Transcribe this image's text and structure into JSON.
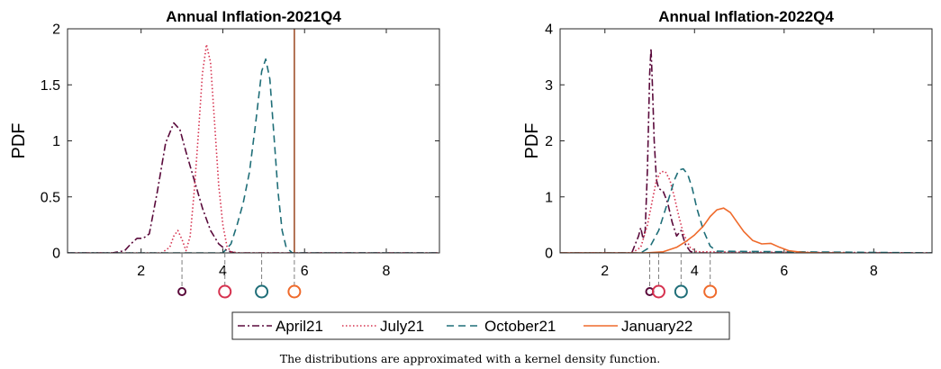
{
  "chart_data": [
    {
      "type": "line",
      "title": "Annual Inflation-2021Q4",
      "xlabel": "",
      "ylabel": "PDF",
      "xlim": [
        0.2,
        9.3
      ],
      "ylim": [
        0,
        2
      ],
      "xticks": [
        2,
        4,
        6,
        8
      ],
      "xtick_labels": [
        "2",
        "4",
        "6",
        "8"
      ],
      "yticks": [
        0,
        0.5,
        1,
        1.5,
        2
      ],
      "ytick_labels": [
        "0",
        "0.5",
        "1",
        "1.5",
        "2"
      ],
      "vertical_line": {
        "x": 5.75,
        "series": "January22"
      },
      "series": [
        {
          "name": "April21",
          "style": "dashdot",
          "x": [
            0.2,
            1.3,
            1.6,
            1.75,
            1.9,
            2.05,
            2.2,
            2.4,
            2.6,
            2.8,
            2.95,
            3.1,
            3.3,
            3.5,
            3.7,
            3.9,
            4.1,
            4.3,
            4.5,
            4.8,
            9.3
          ],
          "y": [
            0,
            0,
            0.02,
            0.08,
            0.13,
            0.13,
            0.17,
            0.55,
            0.98,
            1.16,
            1.1,
            0.9,
            0.65,
            0.4,
            0.2,
            0.08,
            0.02,
            0,
            0,
            0,
            0
          ]
        },
        {
          "name": "July21",
          "style": "dotted",
          "x": [
            0.2,
            2.5,
            2.7,
            2.8,
            2.9,
            3.0,
            3.1,
            3.2,
            3.3,
            3.4,
            3.5,
            3.6,
            3.7,
            3.8,
            3.9,
            4.0,
            4.1,
            4.2,
            4.4,
            9.3
          ],
          "y": [
            0,
            0,
            0.05,
            0.15,
            0.2,
            0.12,
            0.02,
            0.15,
            0.55,
            1.05,
            1.6,
            1.86,
            1.7,
            1.15,
            0.6,
            0.25,
            0.06,
            0.01,
            0,
            0
          ]
        },
        {
          "name": "October21",
          "style": "dashed",
          "x": [
            0.2,
            4.0,
            4.2,
            4.35,
            4.5,
            4.65,
            4.8,
            4.95,
            5.05,
            5.15,
            5.25,
            5.35,
            5.45,
            5.55,
            5.7,
            9.3
          ],
          "y": [
            0,
            0,
            0.08,
            0.25,
            0.45,
            0.72,
            1.15,
            1.62,
            1.73,
            1.55,
            1.05,
            0.55,
            0.2,
            0.05,
            0,
            0
          ]
        },
        {
          "name": "January22",
          "style": "solid",
          "x": [],
          "y": []
        }
      ],
      "markers": [
        {
          "series": "April21",
          "x": 3.0
        },
        {
          "series": "July21",
          "x": 4.05
        },
        {
          "series": "October21",
          "x": 4.95
        },
        {
          "series": "January22",
          "x": 5.75
        }
      ]
    },
    {
      "type": "line",
      "title": "Annual Inflation-2022Q4",
      "xlabel": "",
      "ylabel": "PDF",
      "xlim": [
        1,
        9.3
      ],
      "ylim": [
        0,
        4
      ],
      "xticks": [
        2,
        4,
        6,
        8
      ],
      "xtick_labels": [
        "2",
        "4",
        "6",
        "8"
      ],
      "yticks": [
        0,
        1,
        2,
        3,
        4
      ],
      "ytick_labels": [
        "0",
        "1",
        "2",
        "3",
        "4"
      ],
      "series": [
        {
          "name": "April21",
          "style": "dashdot",
          "x": [
            1,
            2.6,
            2.75,
            2.8,
            2.85,
            2.9,
            2.95,
            3.0,
            3.03,
            3.06,
            3.1,
            3.15,
            3.2,
            3.3,
            3.4,
            3.5,
            3.6,
            3.7,
            3.8,
            3.9,
            4.0,
            9.3
          ],
          "y": [
            0,
            0,
            0.3,
            0.45,
            0.25,
            0.4,
            1.5,
            3.2,
            3.65,
            3.0,
            2.0,
            1.3,
            1.15,
            1.1,
            0.9,
            0.55,
            0.3,
            0.4,
            0.15,
            0.03,
            0,
            0
          ]
        },
        {
          "name": "July21",
          "style": "dotted",
          "x": [
            1,
            2.6,
            2.8,
            2.95,
            3.05,
            3.15,
            3.25,
            3.35,
            3.45,
            3.55,
            3.65,
            3.75,
            3.9,
            4.05,
            9.3
          ],
          "y": [
            0,
            0,
            0.1,
            0.5,
            0.9,
            1.3,
            1.45,
            1.45,
            1.3,
            1.0,
            0.65,
            0.35,
            0.1,
            0.02,
            0
          ]
        },
        {
          "name": "October21",
          "style": "dashed",
          "x": [
            1,
            2.8,
            3.0,
            3.2,
            3.4,
            3.55,
            3.65,
            3.75,
            3.85,
            3.95,
            4.05,
            4.2,
            4.35,
            4.5,
            9.3
          ],
          "y": [
            0,
            0,
            0.1,
            0.4,
            0.9,
            1.3,
            1.48,
            1.5,
            1.4,
            1.15,
            0.8,
            0.4,
            0.12,
            0.03,
            0
          ]
        },
        {
          "name": "January22",
          "style": "solid",
          "x": [
            1,
            2.9,
            3.3,
            3.6,
            3.8,
            4.0,
            4.2,
            4.35,
            4.5,
            4.65,
            4.8,
            4.95,
            5.1,
            5.3,
            5.5,
            5.7,
            5.9,
            6.1,
            6.4,
            6.8,
            7.35
          ],
          "y": [
            0,
            0,
            0.02,
            0.1,
            0.2,
            0.32,
            0.48,
            0.65,
            0.77,
            0.8,
            0.72,
            0.55,
            0.38,
            0.22,
            0.16,
            0.17,
            0.1,
            0.04,
            0.01,
            0,
            0
          ]
        }
      ],
      "markers": [
        {
          "series": "April21",
          "x": 3.0
        },
        {
          "series": "July21",
          "x": 3.2
        },
        {
          "series": "October21",
          "x": 3.7
        },
        {
          "series": "January22",
          "x": 4.35
        }
      ]
    }
  ],
  "legend": {
    "placement": "bottom-center",
    "entries": [
      {
        "label": "April21",
        "color": "#5a0a3b",
        "dash": "8 3 2 3"
      },
      {
        "label": "July21",
        "color": "#d6324f",
        "dash": "1.5 2.5"
      },
      {
        "label": "October21",
        "color": "#1f6e78",
        "dash": "8 5"
      },
      {
        "label": "January22",
        "color": "#ef6a2b",
        "dash": ""
      }
    ]
  },
  "series_colors": {
    "April21": "#5a0a3b",
    "July21": "#d6324f",
    "October21": "#1f6e78",
    "January22": "#ef6a2b"
  },
  "caption": "The distributions are approximated with a kernel density function."
}
